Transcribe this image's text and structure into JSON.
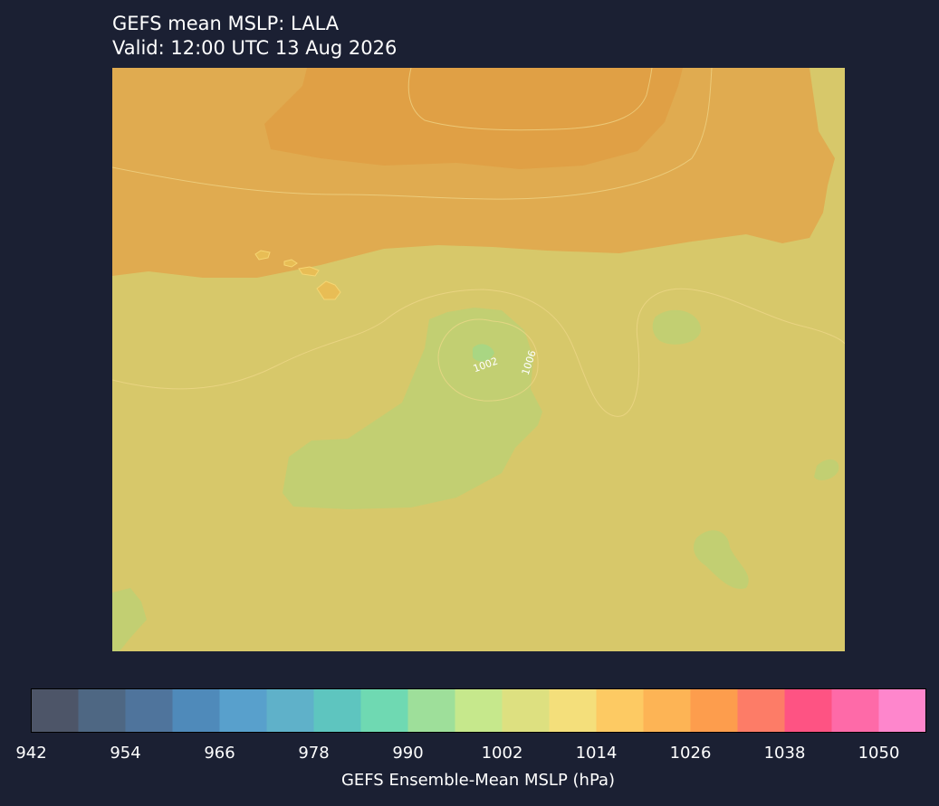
{
  "map": {
    "title": "GEFS mean MSLP: LALA",
    "subtitle": "Valid: 12:00 UTC 13 Aug 2026",
    "contour_labels": [
      "1002",
      "1006"
    ]
  },
  "colorbar": {
    "label": "GEFS Ensemble-Mean MSLP (hPa)",
    "min": 942,
    "max": 1056,
    "step": 6,
    "tick_labels": [
      "942",
      "954",
      "966",
      "978",
      "990",
      "1002",
      "1014",
      "1026",
      "1038",
      "1050"
    ],
    "colors": [
      "#4d5568",
      "#4e6783",
      "#4f749c",
      "#4f8aba",
      "#58a0cc",
      "#5fb1c9",
      "#5ec5bf",
      "#6fd9b2",
      "#9edf9a",
      "#c6e88c",
      "#dde080",
      "#f4df7b",
      "#fdca63",
      "#fdb455",
      "#fd9d4d",
      "#fd7c67",
      "#fe5383",
      "#fe6aa8",
      "#fe86cc"
    ]
  },
  "legend_colors": {
    "high": "#e0a045",
    "mid": "#e6b554",
    "base": "#d7c86a",
    "low": "#c2d070",
    "lowest": "#a9d683"
  }
}
